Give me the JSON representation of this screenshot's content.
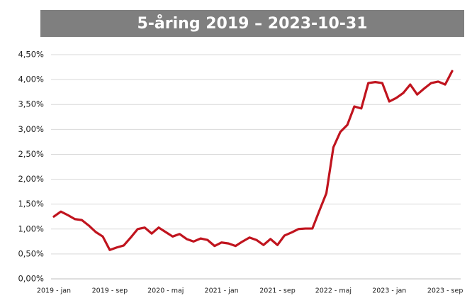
{
  "chart_data": {
    "type": "line",
    "title": "5-åring 2019 – 2023-10-31",
    "categories": [
      "2019 - jan",
      null,
      null,
      null,
      null,
      null,
      null,
      null,
      "2019 - sep",
      null,
      null,
      null,
      null,
      null,
      null,
      null,
      "2020 - maj",
      null,
      null,
      null,
      null,
      null,
      null,
      null,
      "2021 - jan",
      null,
      null,
      null,
      null,
      null,
      null,
      null,
      "2021 - sep",
      null,
      null,
      null,
      null,
      null,
      null,
      null,
      "2022 - maj",
      null,
      null,
      null,
      null,
      null,
      null,
      null,
      "2023 - jan",
      null,
      null,
      null,
      null,
      null,
      null,
      null,
      "2023 - sep",
      null
    ],
    "series": [
      {
        "name": "5-åring",
        "color": "#c0141e",
        "values": [
          1.25,
          1.35,
          1.28,
          1.2,
          1.18,
          1.07,
          0.94,
          0.85,
          0.58,
          0.63,
          0.67,
          0.83,
          1.0,
          1.03,
          0.91,
          1.03,
          0.94,
          0.85,
          0.9,
          0.8,
          0.75,
          0.81,
          0.78,
          0.66,
          0.73,
          0.71,
          0.66,
          0.75,
          0.83,
          0.78,
          0.68,
          0.8,
          0.68,
          0.87,
          0.93,
          1.0,
          1.01,
          1.01,
          1.37,
          1.72,
          2.64,
          2.95,
          3.09,
          3.46,
          3.42,
          3.93,
          3.95,
          3.93,
          3.56,
          3.63,
          3.73,
          3.9,
          3.7,
          3.82,
          3.93,
          3.96,
          3.9,
          4.17
        ]
      }
    ],
    "ylim": [
      0,
      4.5
    ],
    "yticks": [
      {
        "value": 0,
        "label": "0,00%"
      },
      {
        "value": 0.5,
        "label": "0,50%"
      },
      {
        "value": 1,
        "label": "1,00%"
      },
      {
        "value": 1.5,
        "label": "1,50%"
      },
      {
        "value": 2,
        "label": "2,00%"
      },
      {
        "value": 2.5,
        "label": "2,50%"
      },
      {
        "value": 3,
        "label": "3,00%"
      },
      {
        "value": 3.5,
        "label": "3,50%"
      },
      {
        "value": 4,
        "label": "4,00%"
      },
      {
        "value": 4.5,
        "label": "4,50%"
      }
    ],
    "grid": true
  }
}
